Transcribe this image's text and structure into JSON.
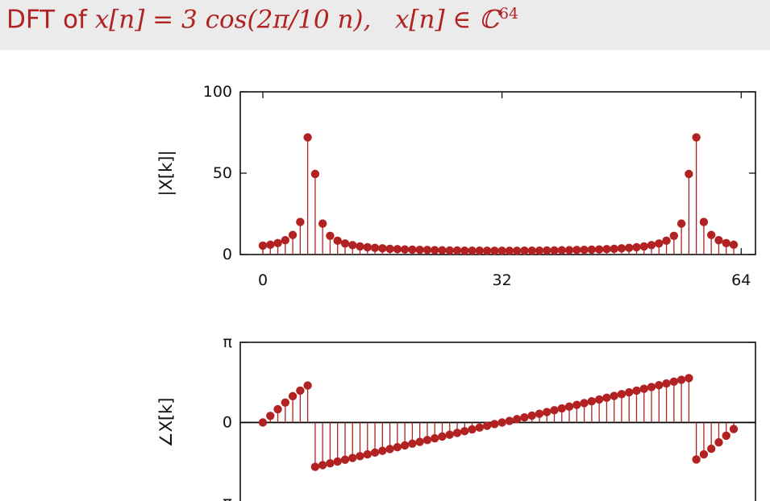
{
  "slide": {
    "title_prefix": "DFT of ",
    "title_signal": "x[n] = 3 cos(2π/10 n),",
    "title_domain": "x[n] ∈ ℂ",
    "title_domain_exp": "64"
  },
  "colors": {
    "accent": "#b22222",
    "title_bar": "#ebebeb",
    "axis": "#000000"
  },
  "chart_data": [
    {
      "type": "stem",
      "ylabel": "|X[k]|",
      "xlim": [
        0,
        63
      ],
      "ylim": [
        0,
        100
      ],
      "xticks": [
        {
          "value": 0,
          "label": "0"
        },
        {
          "value": 32,
          "label": "32"
        },
        {
          "value": 64,
          "label": "64"
        }
      ],
      "yticks": [
        {
          "value": 0,
          "label": "0"
        },
        {
          "value": 50,
          "label": "50"
        },
        {
          "value": 100,
          "label": "100"
        }
      ],
      "x": [
        0,
        1,
        2,
        3,
        4,
        5,
        6,
        7,
        8,
        9,
        10,
        11,
        12,
        13,
        14,
        15,
        16,
        17,
        18,
        19,
        20,
        21,
        22,
        23,
        24,
        25,
        26,
        27,
        28,
        29,
        30,
        31,
        32,
        33,
        34,
        35,
        36,
        37,
        38,
        39,
        40,
        41,
        42,
        43,
        44,
        45,
        46,
        47,
        48,
        49,
        50,
        51,
        52,
        53,
        54,
        55,
        56,
        57,
        58,
        59,
        60,
        61,
        62,
        63
      ],
      "values": [
        5.5,
        6.0,
        7.0,
        8.8,
        12.0,
        20.0,
        72.0,
        49.5,
        19.0,
        11.5,
        8.5,
        6.8,
        5.8,
        5.0,
        4.5,
        4.1,
        3.8,
        3.5,
        3.3,
        3.1,
        3.0,
        2.9,
        2.8,
        2.7,
        2.6,
        2.5,
        2.5,
        2.4,
        2.4,
        2.4,
        2.3,
        2.3,
        2.3,
        2.3,
        2.3,
        2.4,
        2.4,
        2.4,
        2.5,
        2.5,
        2.6,
        2.7,
        2.8,
        2.9,
        3.0,
        3.1,
        3.3,
        3.5,
        3.8,
        4.1,
        4.5,
        5.0,
        5.8,
        6.8,
        8.5,
        11.5,
        19.0,
        49.5,
        72.0,
        20.0,
        12.0,
        8.8,
        7.0,
        6.0
      ]
    },
    {
      "type": "stem",
      "ylabel": "∠X[k]",
      "xlim": [
        0,
        63
      ],
      "ylim": [
        -3.14159,
        3.14159
      ],
      "yticks": [
        {
          "value": 3.14159,
          "label": "π"
        },
        {
          "value": 0,
          "label": "0"
        },
        {
          "value": -3.14159,
          "label": "−π"
        }
      ],
      "x": [
        0,
        1,
        2,
        3,
        4,
        5,
        6,
        7,
        8,
        9,
        10,
        11,
        12,
        13,
        14,
        15,
        16,
        17,
        18,
        19,
        20,
        21,
        22,
        23,
        24,
        25,
        26,
        27,
        28,
        29,
        30,
        31,
        32,
        33,
        34,
        35,
        36,
        37,
        38,
        39,
        40,
        41,
        42,
        43,
        44,
        45,
        46,
        47,
        48,
        49,
        50,
        51,
        52,
        53,
        54,
        55,
        56,
        57,
        58,
        59,
        60,
        61,
        62,
        63
      ],
      "values": [
        0.0,
        0.26,
        0.52,
        0.78,
        1.03,
        1.25,
        1.45,
        -1.74,
        -1.67,
        -1.6,
        -1.53,
        -1.46,
        -1.39,
        -1.32,
        -1.25,
        -1.18,
        -1.11,
        -1.04,
        -0.97,
        -0.9,
        -0.83,
        -0.76,
        -0.69,
        -0.62,
        -0.55,
        -0.48,
        -0.41,
        -0.34,
        -0.27,
        -0.2,
        -0.13,
        -0.06,
        0.0,
        0.06,
        0.13,
        0.2,
        0.27,
        0.34,
        0.41,
        0.48,
        0.55,
        0.62,
        0.69,
        0.76,
        0.83,
        0.9,
        0.97,
        1.04,
        1.11,
        1.18,
        1.25,
        1.32,
        1.39,
        1.46,
        1.53,
        1.6,
        1.67,
        1.74,
        -1.45,
        -1.25,
        -1.03,
        -0.78,
        -0.52,
        -0.26
      ]
    }
  ]
}
